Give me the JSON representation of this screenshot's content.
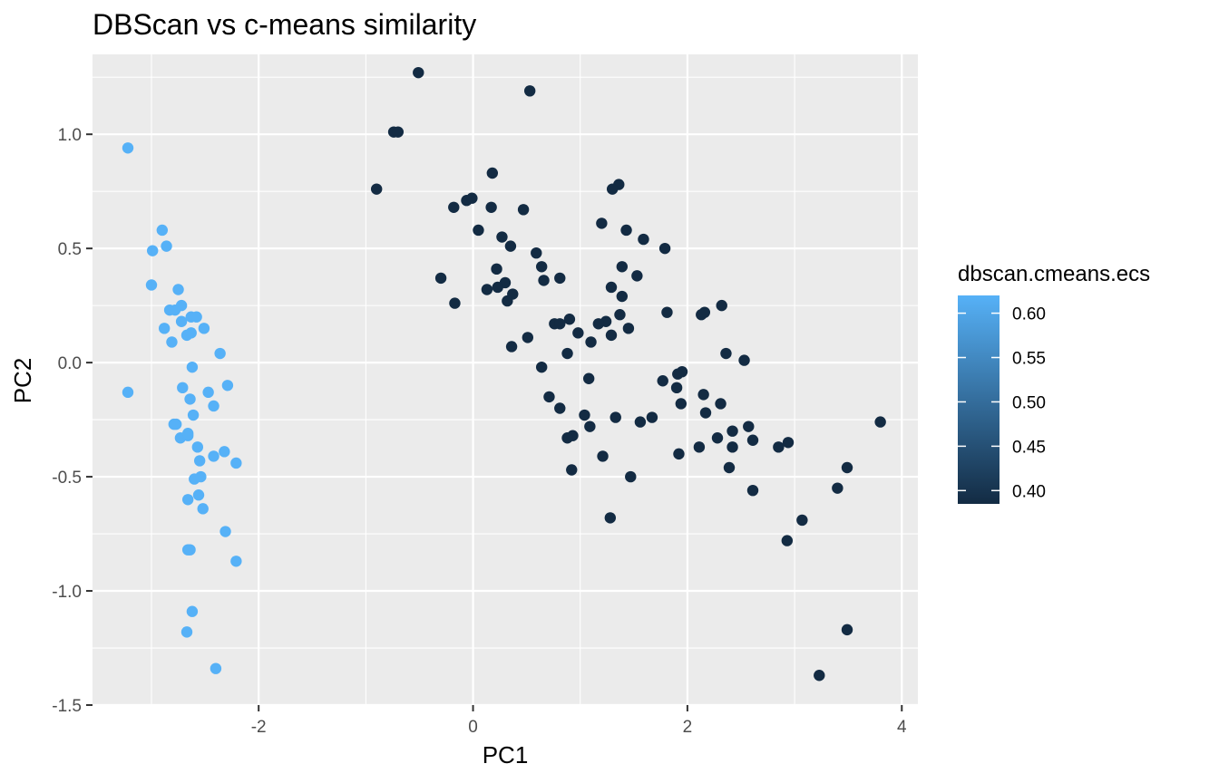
{
  "chart_data": {
    "type": "scatter",
    "title": "DBScan vs c-means similarity",
    "xlabel": "PC1",
    "ylabel": "PC2",
    "xlim": [
      -3.55,
      4.15
    ],
    "ylim": [
      -1.5,
      1.35
    ],
    "x_ticks": [
      -2,
      0,
      2,
      4
    ],
    "x_tick_labels": [
      "-2",
      "0",
      "2",
      "4"
    ],
    "y_ticks": [
      -1.5,
      -1.0,
      -0.5,
      0.0,
      0.5,
      1.0
    ],
    "y_tick_labels": [
      "-1.5",
      "-1.0",
      "-0.5",
      "0.0",
      "0.5",
      "1.0"
    ],
    "grid": true,
    "background": "#ebebeb",
    "legend": {
      "title": "dbscan.cmeans.ecs",
      "placement": "right",
      "type": "colorbar",
      "range": [
        0.385,
        0.62
      ],
      "breaks": [
        0.6,
        0.55,
        0.5,
        0.45,
        0.4
      ],
      "break_labels": [
        "0.60",
        "0.55",
        "0.50",
        "0.45",
        "0.40"
      ],
      "low_color": "#132b43",
      "high_color": "#56b1f7"
    },
    "series": [
      {
        "color": "#56b1f7",
        "value": 0.62,
        "x": [
          -3.22,
          -2.86,
          -3.22,
          -2.99,
          -2.9,
          -3.0,
          -2.75,
          -2.83,
          -2.78,
          -2.72,
          -2.63,
          -2.58,
          -2.72,
          -2.51,
          -2.67,
          -2.63,
          -2.88,
          -2.81,
          -2.36,
          -2.62,
          -2.71,
          -2.47,
          -2.29,
          -2.64,
          -2.42,
          -2.61,
          -2.77,
          -2.79,
          -2.73,
          -2.66,
          -2.66,
          -2.57,
          -2.32,
          -2.42,
          -2.21,
          -2.55,
          -2.6,
          -2.54,
          -2.56,
          -2.66,
          -2.52,
          -2.31,
          -2.64,
          -2.66,
          -2.21,
          -2.62,
          -2.67,
          -2.4
        ],
        "y": [
          0.94,
          0.51,
          -0.13,
          0.49,
          0.58,
          0.34,
          0.32,
          0.23,
          0.23,
          0.25,
          0.2,
          0.2,
          0.18,
          0.15,
          0.12,
          0.13,
          0.15,
          0.09,
          0.04,
          -0.02,
          -0.11,
          -0.13,
          -0.1,
          -0.16,
          -0.19,
          -0.23,
          -0.27,
          -0.27,
          -0.33,
          -0.32,
          -0.31,
          -0.37,
          -0.39,
          -0.41,
          -0.44,
          -0.43,
          -0.51,
          -0.5,
          -0.58,
          -0.6,
          -0.64,
          -0.74,
          -0.82,
          -0.82,
          -0.87,
          -1.09,
          -1.18,
          -1.34
        ]
      },
      {
        "color": "#132b43",
        "value": 0.39,
        "x": [
          -0.51,
          0.53,
          -0.74,
          -0.7,
          -0.9,
          1.36,
          1.3,
          0.18,
          -0.06,
          -0.18,
          -0.01,
          0.17,
          0.47,
          1.2,
          0.05,
          1.43,
          0.27,
          1.59,
          0.35,
          1.79,
          0.59,
          0.22,
          0.64,
          0.81,
          0.66,
          -0.3,
          1.39,
          1.53,
          0.13,
          0.3,
          1.29,
          0.23,
          0.37,
          1.39,
          -0.17,
          0.32,
          2.32,
          2.13,
          2.16,
          1.81,
          1.37,
          0.9,
          1.24,
          1.17,
          0.76,
          1.45,
          0.81,
          0.98,
          1.29,
          1.1,
          0.51,
          0.36,
          2.36,
          2.53,
          0.88,
          0.64,
          1.08,
          1.95,
          1.91,
          1.77,
          1.9,
          0.71,
          2.15,
          1.94,
          0.81,
          2.31,
          1.04,
          2.17,
          2.57,
          1.67,
          1.33,
          1.56,
          2.42,
          1.09,
          2.28,
          2.61,
          3.8,
          0.93,
          0.88,
          2.94,
          2.11,
          2.85,
          2.42,
          1.92,
          1.21,
          2.39,
          0.92,
          3.49,
          1.47,
          3.4,
          2.61,
          1.28,
          3.07,
          2.93,
          3.49,
          3.23
        ],
        "y": [
          1.27,
          1.19,
          1.01,
          1.01,
          0.76,
          0.78,
          0.76,
          0.83,
          0.71,
          0.68,
          0.72,
          0.68,
          0.67,
          0.61,
          0.58,
          0.58,
          0.55,
          0.54,
          0.51,
          0.5,
          0.48,
          0.41,
          0.42,
          0.37,
          0.36,
          0.37,
          0.42,
          0.38,
          0.32,
          0.35,
          0.33,
          0.33,
          0.3,
          0.29,
          0.26,
          0.27,
          0.25,
          0.21,
          0.22,
          0.22,
          0.21,
          0.19,
          0.18,
          0.17,
          0.17,
          0.15,
          0.17,
          0.13,
          0.12,
          0.09,
          0.11,
          0.07,
          0.04,
          0.01,
          0.04,
          -0.02,
          -0.07,
          -0.04,
          -0.05,
          -0.08,
          -0.11,
          -0.15,
          -0.14,
          -0.18,
          -0.2,
          -0.18,
          -0.23,
          -0.22,
          -0.28,
          -0.24,
          -0.24,
          -0.26,
          -0.3,
          -0.28,
          -0.33,
          -0.34,
          -0.26,
          -0.32,
          -0.33,
          -0.35,
          -0.37,
          -0.37,
          -0.37,
          -0.4,
          -0.41,
          -0.46,
          -0.47,
          -0.46,
          -0.5,
          -0.55,
          -0.56,
          -0.68,
          -0.69,
          -0.78,
          -1.17,
          -1.37
        ]
      }
    ]
  }
}
